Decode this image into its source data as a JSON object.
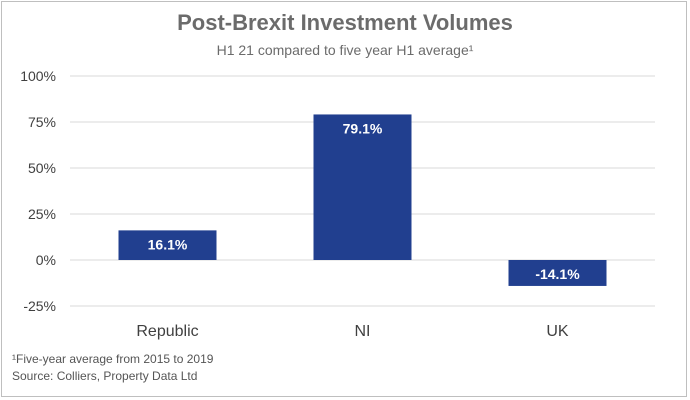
{
  "chart_data": {
    "type": "bar",
    "title": "Post-Brexit Investment Volumes",
    "subtitle": "H1 21 compared to five year H1 average¹",
    "categories": [
      "Republic",
      "NI",
      "UK"
    ],
    "values": [
      16.1,
      79.1,
      -14.1
    ],
    "value_labels": [
      "16.1%",
      "79.1%",
      "-14.1%"
    ],
    "ylim": [
      -25,
      100
    ],
    "yticks": [
      100,
      75,
      50,
      25,
      0,
      -25
    ],
    "ytick_labels": [
      "100%",
      "75%",
      "50%",
      "25%",
      "0%",
      "-25%"
    ],
    "grid": true,
    "bar_color": "#213f8f",
    "legend": "none"
  },
  "footnotes": {
    "note": "¹Five-year average from 2015 to 2019",
    "source": "Source: Colliers, Property Data Ltd"
  }
}
